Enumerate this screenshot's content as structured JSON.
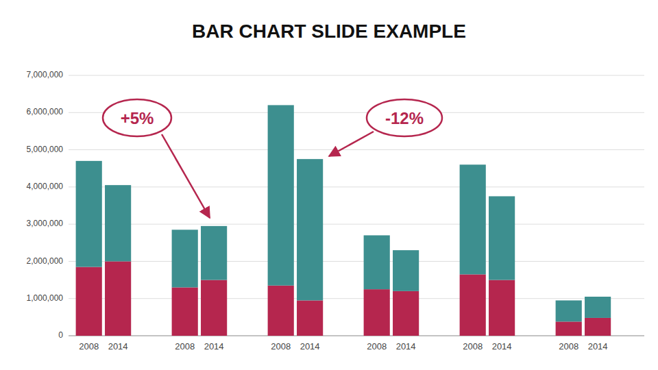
{
  "chart_data": {
    "type": "bar",
    "title": "BAR CHART SLIDE EXAMPLE",
    "stacked": true,
    "grid": true,
    "categories": [
      "2008",
      "2014",
      "2008",
      "2014",
      "2008",
      "2014",
      "2008",
      "2014",
      "2008",
      "2014",
      "2008",
      "2014"
    ],
    "series": [
      {
        "color": "#b5264e",
        "values": [
          1850000,
          2000000,
          1300000,
          1500000,
          1350000,
          950000,
          1250000,
          1200000,
          1650000,
          1500000,
          380000,
          480000
        ]
      },
      {
        "color": "#3d8f8f",
        "values": [
          2850000,
          2050000,
          1550000,
          1450000,
          4850000,
          3800000,
          1450000,
          1100000,
          2950000,
          2250000,
          570000,
          570000
        ]
      }
    ],
    "ylim": [
      0,
      7000000
    ],
    "yticks": [
      0,
      {
        "value": 1000000,
        "label": "1,000,000"
      },
      {
        "value": 2000000,
        "label": "2,000,000"
      },
      {
        "value": 3000000,
        "label": "3,000,000"
      },
      {
        "value": 4000000,
        "label": "4,000,000"
      },
      {
        "value": 5000000,
        "label": "5,000,000"
      },
      {
        "value": 6000000,
        "label": "6,000,000"
      },
      {
        "value": 7000000,
        "label": "7,000,000"
      }
    ],
    "annotations": [
      {
        "text": "+5%",
        "color": "#b5264e"
      },
      {
        "text": "-12%",
        "color": "#b5264e"
      }
    ]
  }
}
